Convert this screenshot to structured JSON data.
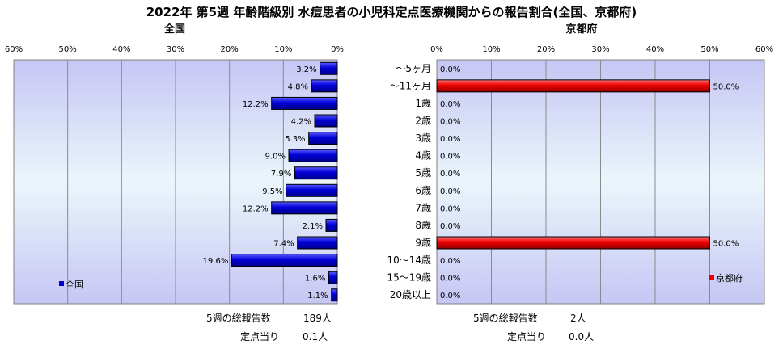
{
  "title": "2022年 第5週 年齢階級別 水痘患者の小児科定点医療機関からの報告割合(全国、京都府)",
  "chart_data": [
    {
      "type": "bar",
      "orientation": "horizontal",
      "title": "全国",
      "xlim": [
        0,
        60
      ],
      "x_direction": "reversed",
      "ticks": [
        "60%",
        "50%",
        "40%",
        "30%",
        "20%",
        "10%",
        "0%"
      ],
      "grid": true,
      "legend_position": "bottom-left",
      "categories": [
        "～5ヶ月",
        "～11ヶ月",
        "1歳",
        "2歳",
        "3歳",
        "4歳",
        "5歳",
        "6歳",
        "7歳",
        "8歳",
        "9歳",
        "10～14歳",
        "15～19歳",
        "20歳以上"
      ],
      "series": [
        {
          "name": "全国",
          "color": "#0000cc",
          "values": [
            3.2,
            4.8,
            12.2,
            4.2,
            5.3,
            9.0,
            7.9,
            9.5,
            12.2,
            2.1,
            7.4,
            19.6,
            1.6,
            1.1
          ],
          "labels": [
            "3.2%",
            "4.8%",
            "12.2%",
            "4.2%",
            "5.3%",
            "9.0%",
            "7.9%",
            "9.5%",
            "12.2%",
            "2.1%",
            "7.4%",
            "19.6%",
            "1.6%",
            "1.1%"
          ]
        }
      ],
      "summary": {
        "total_label": "5週の総報告数",
        "total_value": "189人",
        "per_label": "定点当り",
        "per_value": "0.1人"
      }
    },
    {
      "type": "bar",
      "orientation": "horizontal",
      "title": "京都府",
      "xlim": [
        0,
        60
      ],
      "ticks": [
        "0%",
        "10%",
        "20%",
        "30%",
        "40%",
        "50%",
        "60%"
      ],
      "grid": true,
      "legend_position": "bottom-right",
      "categories": [
        "～5ヶ月",
        "～11ヶ月",
        "1歳",
        "2歳",
        "3歳",
        "4歳",
        "5歳",
        "6歳",
        "7歳",
        "8歳",
        "9歳",
        "10～14歳",
        "15～19歳",
        "20歳以上"
      ],
      "series": [
        {
          "name": "京都府",
          "color": "#ee0000",
          "values": [
            0,
            50,
            0,
            0,
            0,
            0,
            0,
            0,
            0,
            0,
            50,
            0,
            0,
            0
          ],
          "labels": [
            "0.0%",
            "50.0%",
            "0.0%",
            "0.0%",
            "0.0%",
            "0.0%",
            "0.0%",
            "0.0%",
            "0.0%",
            "0.0%",
            "50.0%",
            "0.0%",
            "0.0%",
            "0.0%"
          ]
        }
      ],
      "summary": {
        "total_label": "5週の総報告数",
        "total_value": "2人",
        "per_label": "定点当り",
        "per_value": "0.0人"
      }
    }
  ]
}
